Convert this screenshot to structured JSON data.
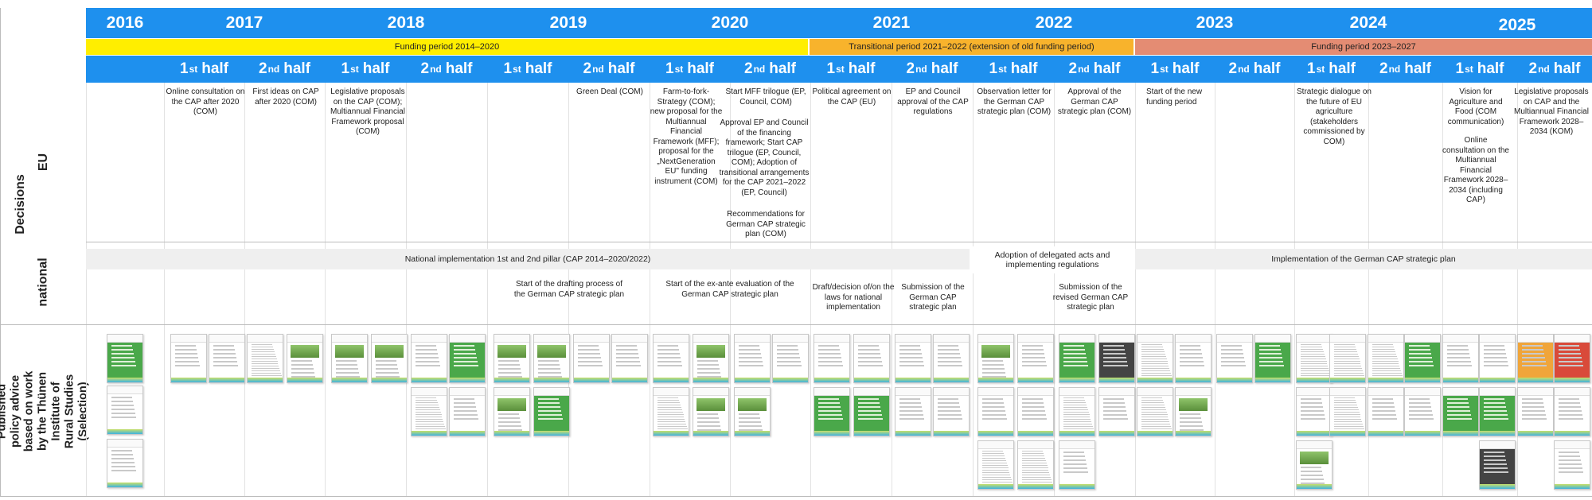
{
  "years": [
    "2016",
    "2017",
    "2018",
    "2019",
    "2020",
    "2021",
    "2022",
    "2023",
    "2024",
    "2025"
  ],
  "funding_periods": [
    "Funding period 2014–2020",
    "Transitional period 2021–2022 (extension of old funding period)",
    "Funding period 2023–2027"
  ],
  "half_labels": {
    "first_num": "1",
    "first_sup": "st",
    "second_num": "2",
    "second_sup": "nd",
    "word": "half"
  },
  "row_labels": {
    "decisions": "Decisions",
    "eu": "EU",
    "national": "national",
    "published": "Published policy advice based on work by the Thünen Institute of Rural Studies (Selection)"
  },
  "eu_events": {
    "e2017a": "Online consultation on the CAP after 2020 (COM)",
    "e2017b": "First ideas on CAP after 2020 (COM)",
    "e2018a": "Legislative proposals on the CAP (COM); Multiannual Financial Framework proposal (COM)",
    "e2019b": "Green Deal (COM)",
    "e2020a": "Farm-to-fork-Strategy (COM); new proposal for the Multiannual Financial Framework (MFF); proposal for the „NextGeneration EU\" funding instrument (COM)",
    "e2020b1": "Start MFF trilogue (EP, Council, COM)",
    "e2020b2": "Approval EP and Council of the financing framework; Start CAP trilogue (EP, Council, COM); Adoption of transitional arrangements for the CAP 2021–2022 (EP, Council)",
    "e2020b3": "Recommendations for German CAP strategic plan (COM)",
    "e2021a": "Political agreement on the CAP (EU)",
    "e2021b": "EP and Council approval of the CAP regulations",
    "e2022a": "Observation letter for the German CAP strategic plan (COM)",
    "e2022b": "Approval of the German CAP strategic plan (COM)",
    "e2023a": "Start of the new funding period",
    "e2024a": "Strategic dialogue on the future of EU agriculture (stakeholders commissioned by COM)",
    "e2025a1": "Vision for Agriculture and Food (COM communication)",
    "e2025a2": "Online consultation on the Multiannual Financial Framework 2028–2034 (including CAP)",
    "e2025b": "Legislative proposals on CAP and the Multiannual Financial Framework 2028–2034 (KOM)"
  },
  "national_events": {
    "band1": "National implementation 1st and 2nd pillar (CAP 2014–2020/2022)",
    "band2": "Adoption of delegated acts and implementing regulations",
    "band3": "Implementation of the German CAP strategic plan",
    "n2019": "Start of the drafting process of the German CAP strategic plan",
    "n2020": "Start of the ex-ante evaluation of the German CAP strategic plan",
    "n2021a": "Draft/decision of/on the laws for national implementation",
    "n2021b": "Submission of the German CAP strategic plan",
    "n2022b": "Submission of the revised German CAP strategic plan"
  },
  "colors": {
    "header_blue": "#1E90EE",
    "period1": "#FFEE00",
    "period2": "#F8B32C",
    "period3": "#E48C73",
    "band": "#efefef"
  }
}
